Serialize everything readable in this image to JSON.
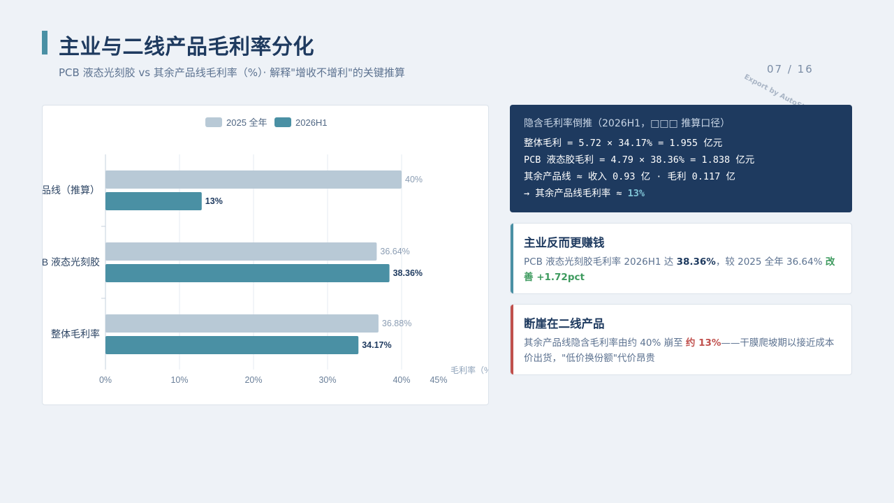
{
  "header": {
    "title": "主业与二线产品毛利率分化",
    "subtitle": "PCB 液态光刻胶 vs 其余产品线毛利率（%）· 解释\"增收不增利\"的关键推算",
    "page": "07 / 16",
    "watermark": "Export by AutoSlide.com"
  },
  "calc": {
    "title": "隐含毛利率倒推（2026H1，□□□ 推算口径）",
    "line1": "整体毛利 = 5.72 × 34.17% = 1.955 亿元",
    "line2": "PCB 液态胶毛利 = 4.79 × 38.36% = 1.838 亿元",
    "line3": "其余产品线 ≈ 收入 0.93 亿 · 毛利 0.117 亿",
    "line4_prefix": "→ 其余产品线毛利率 ≈ ",
    "line4_value": "13%"
  },
  "card1": {
    "title": "主业反而更赚钱",
    "text_a": "PCB 液态光刻胶毛利率 2026H1 达 ",
    "text_b": "38.36%",
    "text_c": "，较 2025 全年 36.64% ",
    "text_d": "改善 +1.72pct"
  },
  "card2": {
    "title": "断崖在二线产品",
    "text_a": "其余产品线隐含毛利率由约 40% 崩至 ",
    "text_b": "约 13%",
    "text_c": "——干膜爬坡期以接近成本价出货，\"低价换份额\"代价昂贵"
  },
  "chart_data": {
    "type": "bar",
    "orientation": "horizontal",
    "categories": [
      "其余产品线（推算）",
      "PCB 液态光刻胶",
      "整体毛利率"
    ],
    "series": [
      {
        "name": "2025 全年",
        "values": [
          40,
          36.64,
          36.88
        ],
        "labels": [
          "40%",
          "36.64%",
          "36.88%"
        ],
        "color": "#b8c9d6"
      },
      {
        "name": "2026H1",
        "values": [
          13,
          38.36,
          34.17
        ],
        "labels": [
          "13%",
          "38.36%",
          "34.17%"
        ],
        "color": "#4a90a4"
      }
    ],
    "xlabel": "毛利率（%）",
    "xlim": [
      0,
      45
    ],
    "xticks": [
      0,
      10,
      20,
      30,
      40,
      45
    ],
    "xtick_labels": [
      "0%",
      "10%",
      "20%",
      "30%",
      "40%",
      "45%"
    ],
    "legend": "top-center",
    "grid": true
  }
}
